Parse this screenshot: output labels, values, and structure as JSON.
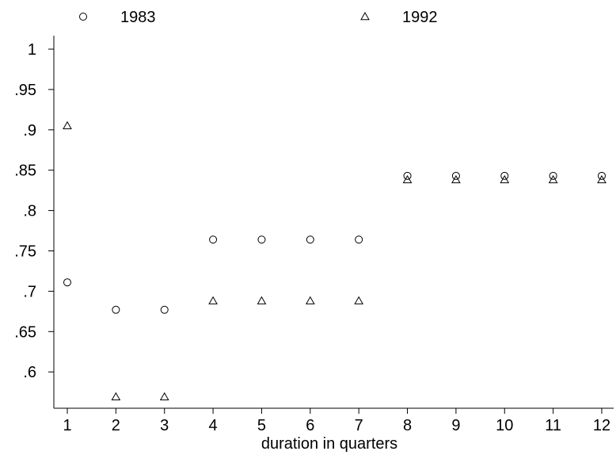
{
  "chart_data": {
    "type": "scatter",
    "title": "",
    "xlabel": "duration in quarters",
    "ylabel": "",
    "x": [
      1,
      2,
      3,
      4,
      5,
      6,
      7,
      8,
      9,
      10,
      11,
      12
    ],
    "xlim": [
      1,
      12
    ],
    "ylim": [
      0.555,
      1.0
    ],
    "xticks": [
      "1",
      "2",
      "3",
      "4",
      "5",
      "6",
      "7",
      "8",
      "9",
      "10",
      "11",
      "12"
    ],
    "yticks": [
      {
        "value": 0.6,
        "label": ".6"
      },
      {
        "value": 0.65,
        "label": ".65"
      },
      {
        "value": 0.7,
        "label": ".7"
      },
      {
        "value": 0.75,
        "label": ".75"
      },
      {
        "value": 0.8,
        "label": ".8"
      },
      {
        "value": 0.85,
        "label": ".85"
      },
      {
        "value": 0.9,
        "label": ".9"
      },
      {
        "value": 0.95,
        "label": ".95"
      },
      {
        "value": 1.0,
        "label": "1"
      }
    ],
    "grid": false,
    "legend_position": "top",
    "series": [
      {
        "name": "1983",
        "marker": "circle",
        "values": [
          0.711,
          0.677,
          0.677,
          0.764,
          0.764,
          0.764,
          0.764,
          0.843,
          0.843,
          0.843,
          0.843,
          0.843
        ]
      },
      {
        "name": "1992",
        "marker": "triangle",
        "values": [
          0.905,
          0.569,
          0.569,
          0.688,
          0.688,
          0.688,
          0.688,
          0.838,
          0.838,
          0.838,
          0.838,
          0.838
        ]
      }
    ],
    "colors": {
      "marker": "#000000",
      "axis": "#000000",
      "background": "#ffffff"
    }
  }
}
